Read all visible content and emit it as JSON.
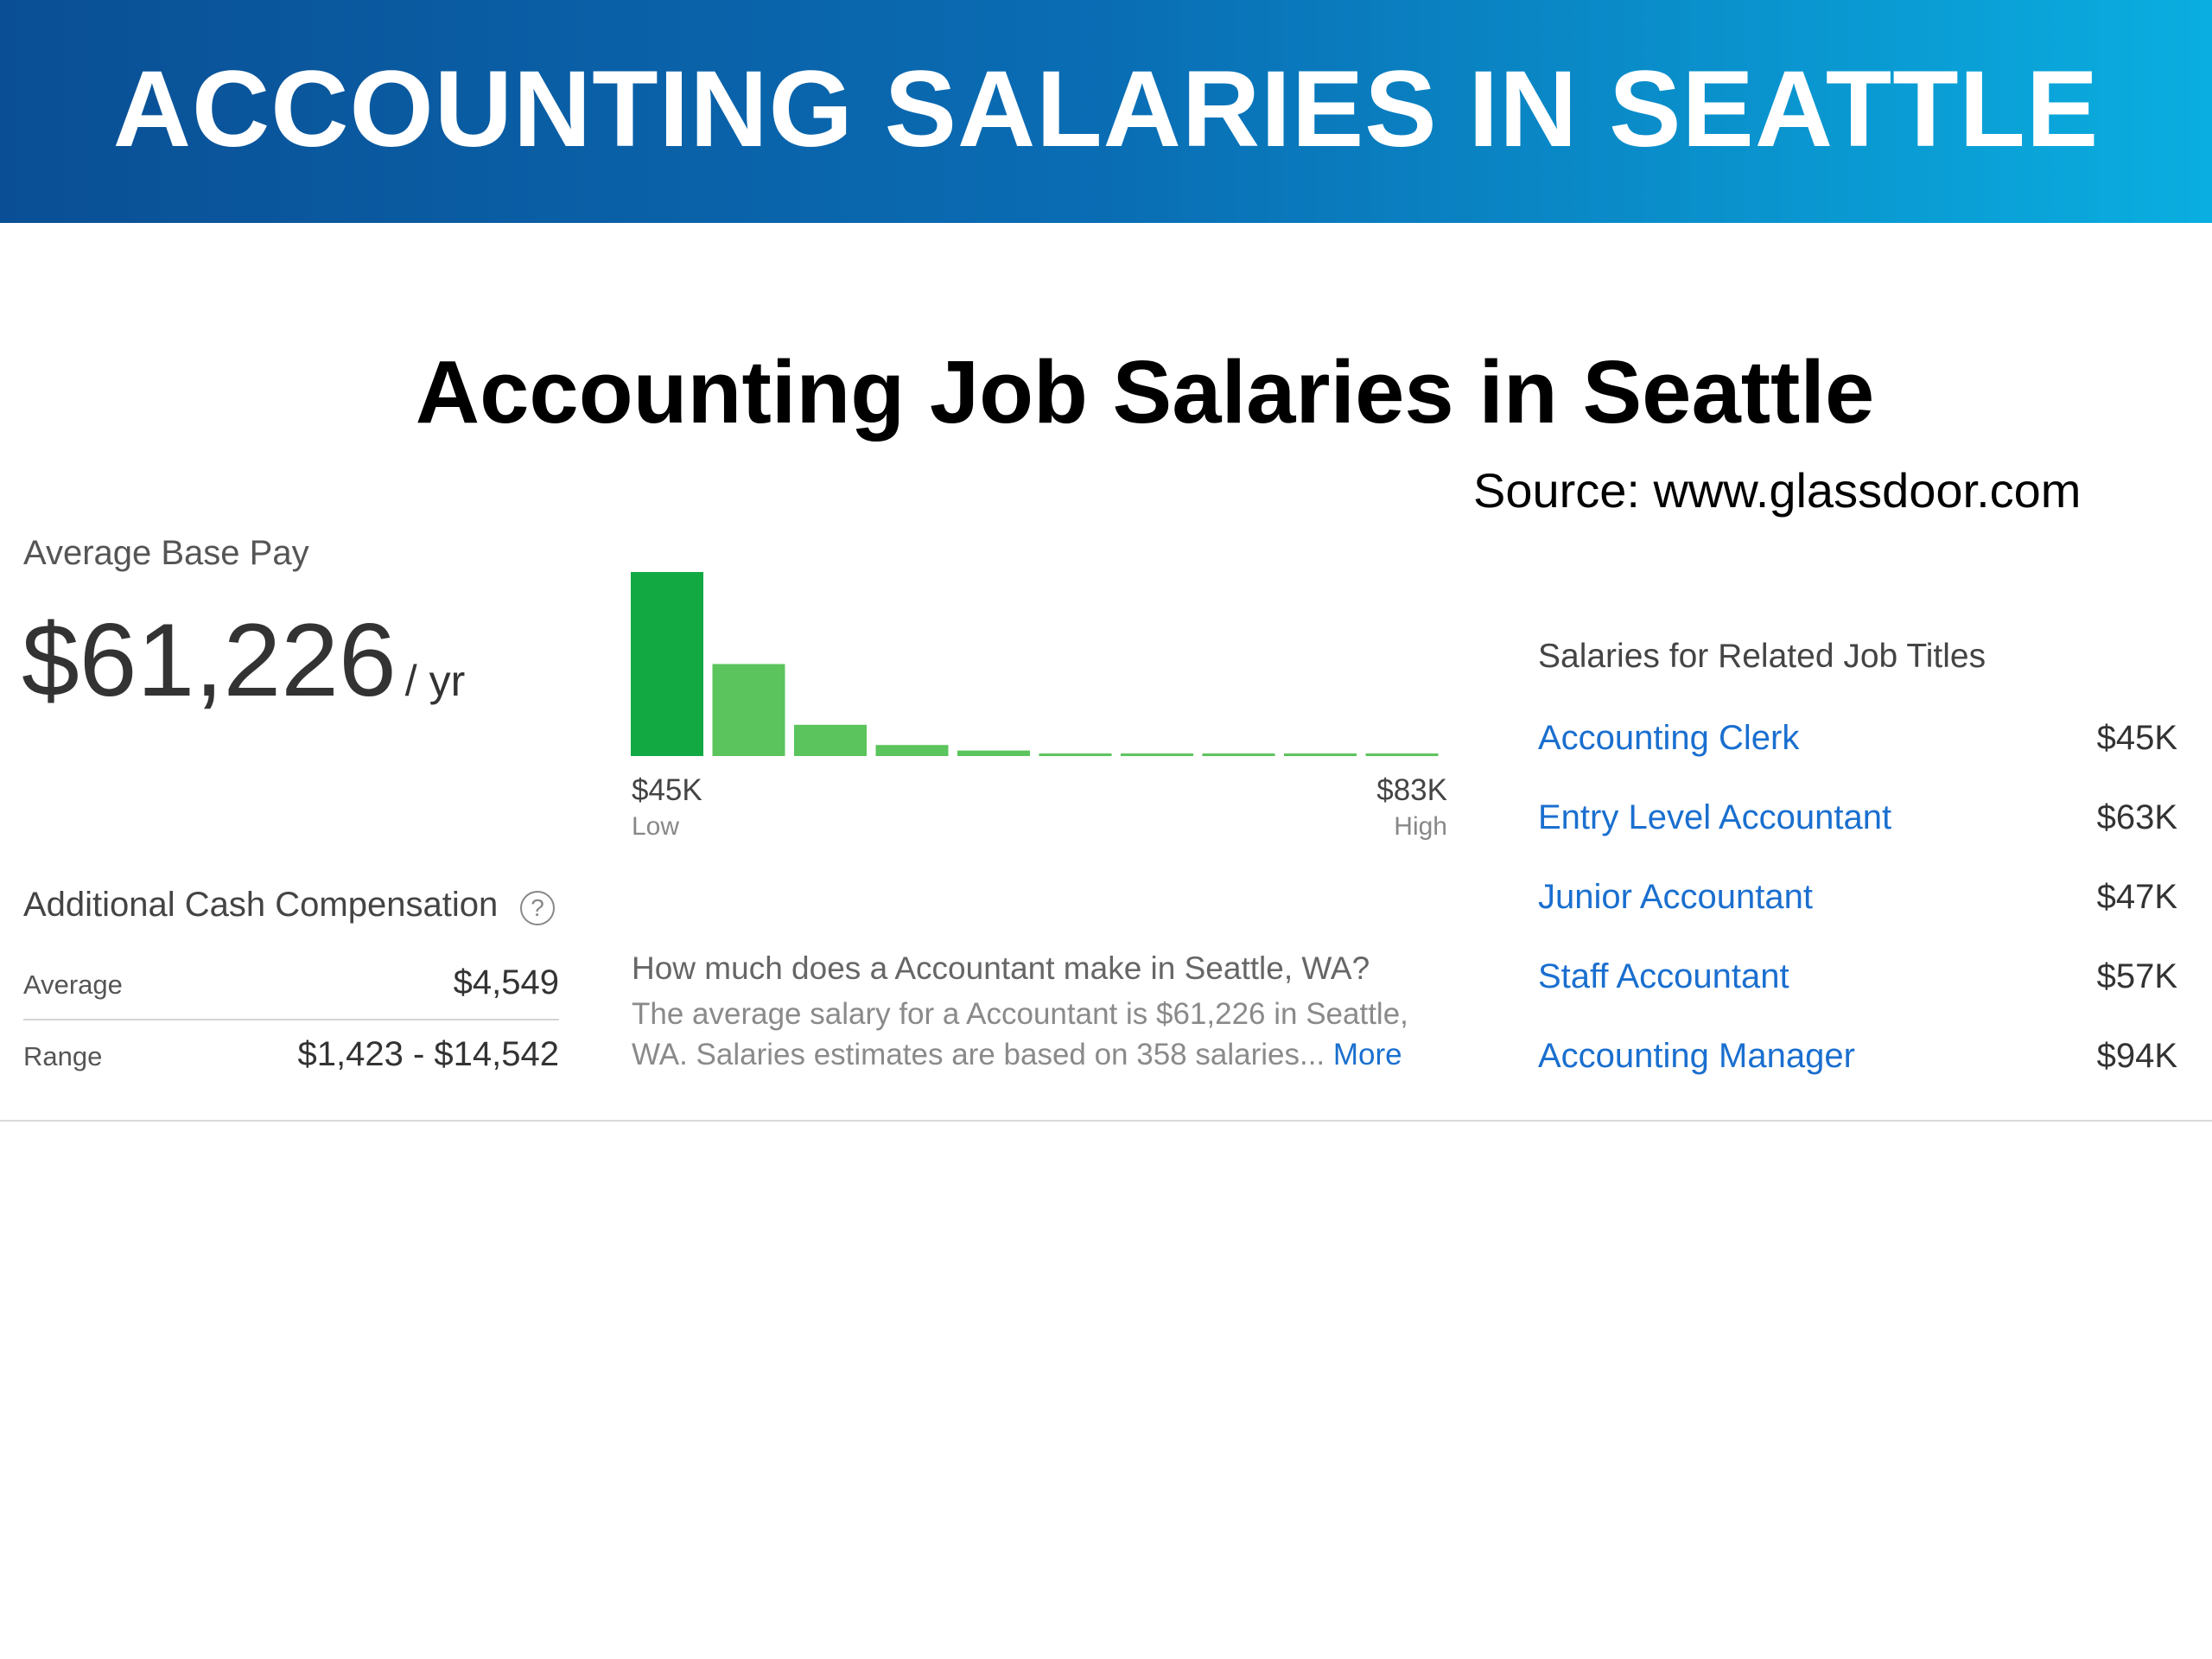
{
  "banner": {
    "title": "ACCOUNTING SALARIES IN SEATTLE"
  },
  "slide": {
    "subtitle": "Accounting Job Salaries in Seattle",
    "source": "Source: www.glassdoor.com"
  },
  "base_pay": {
    "label": "Average Base Pay",
    "amount": "$61,226",
    "unit": "/ yr"
  },
  "cash_comp": {
    "title": "Additional Cash Compensation",
    "help_icon": "?",
    "rows": [
      {
        "label": "Average",
        "value": "$4,549"
      },
      {
        "label": "Range",
        "value": "$1,423 - $14,542"
      }
    ]
  },
  "chart_data": {
    "type": "bar",
    "values": [
      100,
      50,
      17,
      6,
      3,
      1,
      1,
      1,
      1,
      1
    ],
    "x_low": "$45K",
    "x_low_sub": "Low",
    "x_high": "$83K",
    "x_high_sub": "High",
    "colors": [
      "#12a943",
      "#5cc45c",
      "#5cc45c",
      "#5cc45c",
      "#5cc45c",
      "#5cc45c",
      "#5cc45c",
      "#5cc45c",
      "#5cc45c",
      "#5cc45c"
    ]
  },
  "faq": {
    "question": "How much does a Accountant make in Seattle, WA?",
    "answer": "The average salary for a Accountant is $61,226 in Seattle, WA. Salaries estimates are based on 358 salaries...",
    "more": "More"
  },
  "related": {
    "title": "Salaries for Related Job Titles",
    "items": [
      {
        "title": "Accounting Clerk",
        "salary": "$45K"
      },
      {
        "title": "Entry Level Accountant",
        "salary": "$63K"
      },
      {
        "title": "Junior Accountant",
        "salary": "$47K"
      },
      {
        "title": "Staff Accountant",
        "salary": "$57K"
      },
      {
        "title": "Accounting Manager",
        "salary": "$94K"
      }
    ]
  }
}
